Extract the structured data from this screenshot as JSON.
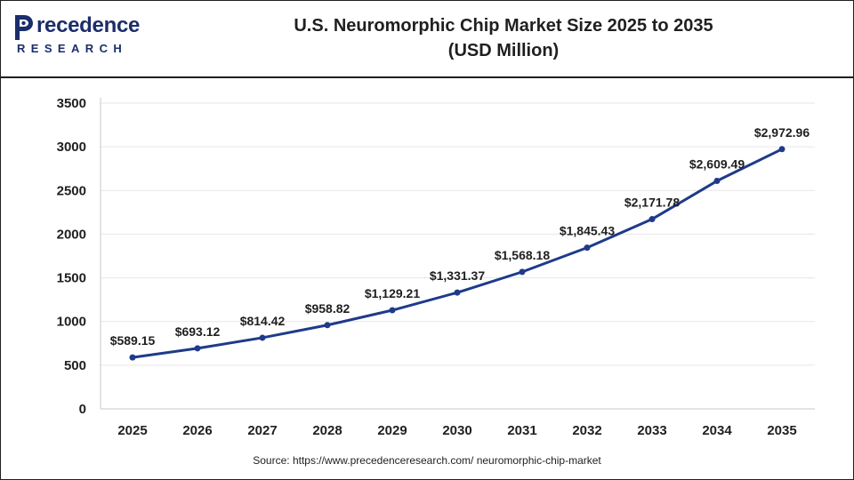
{
  "logo": {
    "line1": "recedence",
    "line2": "RESEARCH",
    "brand_color": "#1b2d6b"
  },
  "title": {
    "line1": "U.S. Neuromorphic Chip Market Size 2025 to 2035",
    "line2": "(USD Million)"
  },
  "source": "Source: https://www.precedenceresearch.com/ neuromorphic-chip-market",
  "colors": {
    "line": "#1e3a8a",
    "point": "#1e3a8a",
    "grid": "#e6e6e6"
  },
  "chart_data": {
    "type": "line",
    "title": "U.S. Neuromorphic Chip Market Size 2025 to 2035 (USD Million)",
    "xlabel": "",
    "ylabel": "",
    "categories": [
      "2025",
      "2026",
      "2027",
      "2028",
      "2029",
      "2030",
      "2031",
      "2032",
      "2033",
      "2034",
      "2035"
    ],
    "series": [
      {
        "values": [
          589.15,
          693.12,
          814.42,
          958.82,
          1129.21,
          1331.37,
          1568.18,
          1845.43,
          2171.78,
          2609.49,
          2972.96
        ],
        "labels": [
          "$589.15",
          "$693.12",
          "$814.42",
          "$958.82",
          "$1,129.21",
          "$1,331.37",
          "$1,568.18",
          "$1,845.43",
          "$2,171.78",
          "$2,609.49",
          "$2,972.96"
        ]
      }
    ],
    "ylim": [
      0,
      3500
    ],
    "yticks": [
      0,
      500,
      1000,
      1500,
      2000,
      2500,
      3000,
      3500
    ],
    "grid": true,
    "legend": "none"
  }
}
